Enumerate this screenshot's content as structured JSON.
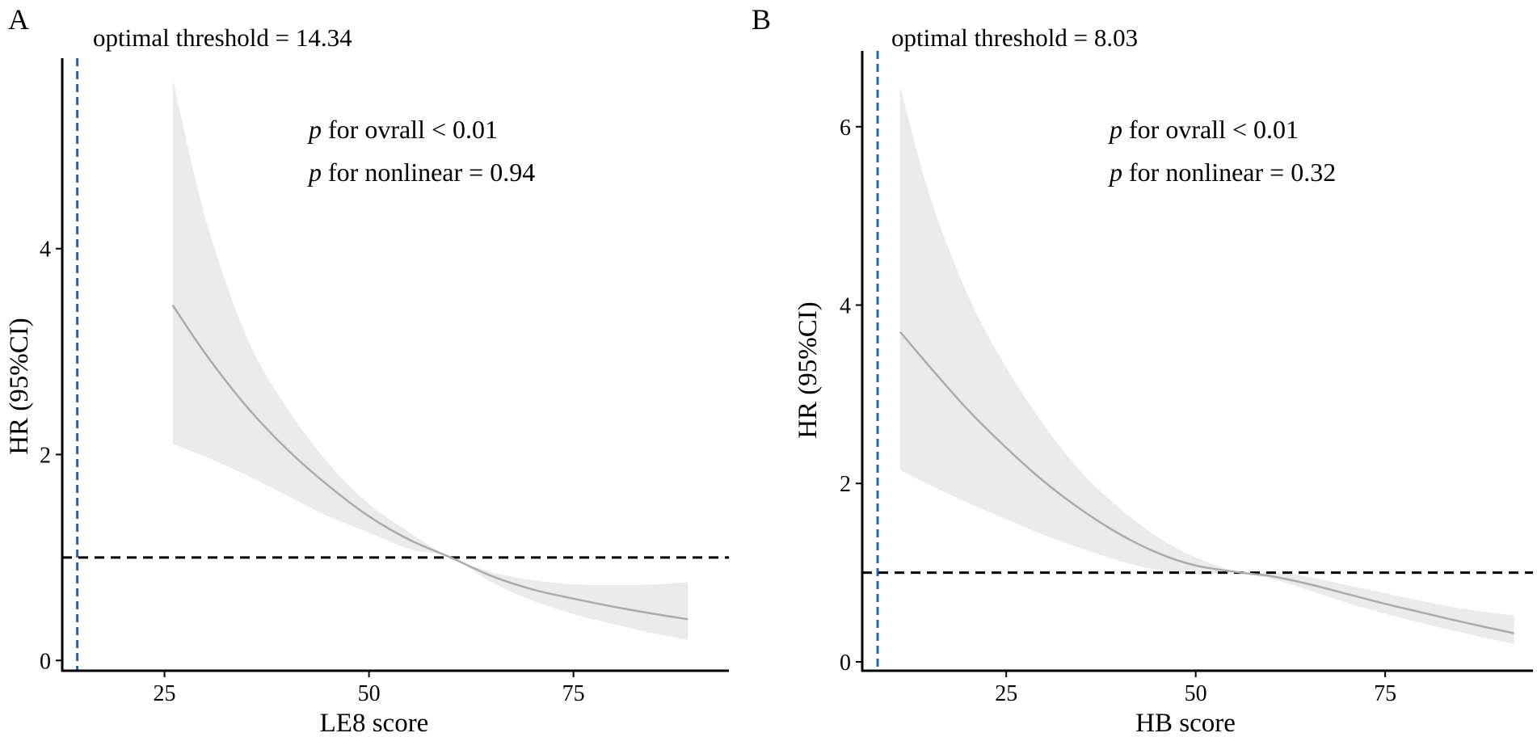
{
  "chart_data": [
    {
      "type": "line",
      "panel": "A",
      "xlabel": "LE8 score",
      "ylabel": "HR (95%CI)",
      "xlim": [
        12.5,
        94
      ],
      "ylim": [
        -0.1,
        5.85
      ],
      "xticks": [
        25,
        50,
        75
      ],
      "yticks": [
        0,
        2,
        4
      ],
      "threshold_label": "optimal threshold = 14.34",
      "threshold": 14.34,
      "reference_hr": 1,
      "annotation_lines": [
        {
          "p": "p",
          "text": " for ovrall < 0.01"
        },
        {
          "p": "p",
          "text": " for nonlinear = 0.94"
        }
      ],
      "colors": {
        "curve": "#ababab",
        "band": "#ebebeb",
        "threshold": "#2166ac",
        "reference": "#000000"
      },
      "series": [
        {
          "name": "HR",
          "x": [
            26,
            30,
            35,
            40,
            45,
            50,
            55,
            60,
            65,
            70,
            75,
            80,
            85,
            89
          ],
          "y": [
            3.45,
            2.98,
            2.47,
            2.05,
            1.7,
            1.4,
            1.17,
            1.0,
            0.82,
            0.69,
            0.6,
            0.52,
            0.45,
            0.4
          ]
        },
        {
          "name": "upper 95% CI",
          "x": [
            26,
            30,
            35,
            40,
            45,
            50,
            55,
            60,
            65,
            70,
            75,
            80,
            85,
            89
          ],
          "y": [
            5.65,
            4.3,
            3.15,
            2.45,
            1.92,
            1.52,
            1.24,
            1.0,
            0.86,
            0.78,
            0.74,
            0.73,
            0.74,
            0.76
          ]
        },
        {
          "name": "lower 95% CI",
          "x": [
            26,
            30,
            35,
            40,
            45,
            50,
            55,
            60,
            65,
            70,
            75,
            80,
            85,
            89
          ],
          "y": [
            2.1,
            1.98,
            1.8,
            1.6,
            1.4,
            1.24,
            1.08,
            1.0,
            0.76,
            0.58,
            0.45,
            0.35,
            0.26,
            0.2
          ]
        }
      ]
    },
    {
      "type": "line",
      "panel": "B",
      "xlabel": "HB score",
      "ylabel": "HR (95%CI)",
      "xlim": [
        6,
        94.5
      ],
      "ylim": [
        -0.1,
        6.85
      ],
      "xticks": [
        25,
        50,
        75
      ],
      "yticks": [
        0,
        2,
        4,
        6
      ],
      "threshold_label": "optimal threshold = 8.03",
      "threshold": 8.03,
      "reference_hr": 1,
      "annotation_lines": [
        {
          "p": "p",
          "text": " for ovrall < 0.01"
        },
        {
          "p": "p",
          "text": " for nonlinear = 0.32"
        }
      ],
      "colors": {
        "curve": "#ababab",
        "band": "#ebebeb",
        "threshold": "#2166ac",
        "reference": "#000000"
      },
      "series": [
        {
          "name": "HR",
          "x": [
            11,
            15,
            20,
            25,
            30,
            35,
            40,
            45,
            50,
            56,
            60,
            65,
            70,
            75,
            80,
            85,
            92
          ],
          "y": [
            3.7,
            3.3,
            2.82,
            2.4,
            2.02,
            1.7,
            1.43,
            1.22,
            1.08,
            1.0,
            0.96,
            0.87,
            0.76,
            0.65,
            0.55,
            0.45,
            0.32
          ]
        },
        {
          "name": "upper 95% CI",
          "x": [
            11,
            15,
            20,
            25,
            30,
            35,
            40,
            45,
            50,
            56,
            60,
            65,
            70,
            75,
            80,
            85,
            92
          ],
          "y": [
            6.45,
            5.2,
            4.1,
            3.3,
            2.65,
            2.12,
            1.72,
            1.4,
            1.17,
            1.0,
            1.0,
            0.95,
            0.86,
            0.77,
            0.68,
            0.6,
            0.52
          ]
        },
        {
          "name": "lower 95% CI",
          "x": [
            11,
            15,
            20,
            25,
            30,
            35,
            40,
            45,
            50,
            56,
            60,
            65,
            70,
            75,
            80,
            85,
            92
          ],
          "y": [
            2.15,
            1.98,
            1.78,
            1.6,
            1.42,
            1.27,
            1.13,
            1.03,
            0.98,
            1.0,
            0.93,
            0.8,
            0.66,
            0.54,
            0.43,
            0.33,
            0.2
          ]
        }
      ]
    }
  ]
}
